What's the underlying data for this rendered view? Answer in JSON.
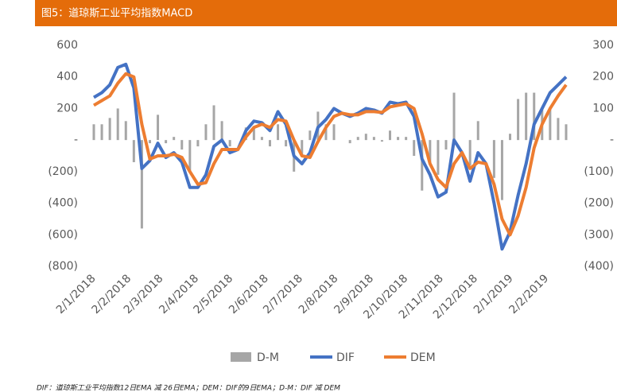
{
  "chart_data": {
    "type": "line",
    "title": "图5：道琼斯工业平均指数MACD",
    "note": "DIF：道琼斯工业平均指数12日EMA 减 26日EMA；DEM：DIF的9日EMA；D-M：DIF 减 DEM",
    "x": [
      "2/1/2018",
      "9/1/2018",
      "16/1/2018",
      "23/1/2018",
      "30/1/2018",
      "6/2/2018",
      "13/2/2018",
      "20/2/2018",
      "27/2/2018",
      "6/3/2018",
      "13/3/2018",
      "20/3/2018",
      "27/3/2018",
      "3/4/2018",
      "10/4/2018",
      "17/4/2018",
      "24/4/2018",
      "1/5/2018",
      "8/5/2018",
      "15/5/2018",
      "22/5/2018",
      "29/5/2018",
      "5/6/2018",
      "12/6/2018",
      "19/6/2018",
      "26/6/2018",
      "3/7/2018",
      "10/7/2018",
      "17/7/2018",
      "24/7/2018",
      "31/7/2018",
      "7/8/2018",
      "14/8/2018",
      "21/8/2018",
      "28/8/2018",
      "4/9/2018",
      "11/9/2018",
      "18/9/2018",
      "25/9/2018",
      "2/10/2018",
      "9/10/2018",
      "16/10/2018",
      "23/10/2018",
      "30/10/2018",
      "6/11/2018",
      "13/11/2018",
      "20/11/2018",
      "27/11/2018",
      "4/12/2018",
      "11/12/2018",
      "18/12/2018",
      "25/12/2018",
      "1/1/2019",
      "8/1/2019",
      "15/1/2019",
      "22/1/2019",
      "29/1/2019",
      "5/2/2019",
      "12/2/2019",
      "19/2/2019"
    ],
    "series": [
      {
        "name": "D-M",
        "kind": "bar",
        "axis": "y2",
        "color": "#a6a6a6",
        "values": [
          50,
          50,
          70,
          100,
          60,
          -70,
          -280,
          -10,
          80,
          -10,
          10,
          -30,
          -100,
          -20,
          50,
          110,
          60,
          -20,
          0,
          40,
          40,
          10,
          -20,
          50,
          -20,
          -100,
          -50,
          30,
          90,
          50,
          50,
          0,
          -10,
          10,
          20,
          10,
          -5,
          30,
          10,
          10,
          -50,
          -160,
          -70,
          -110,
          -30,
          150,
          0,
          -80,
          60,
          0,
          -120,
          -190,
          20,
          130,
          150,
          150,
          100,
          100,
          70,
          50
        ]
      },
      {
        "name": "DIF",
        "kind": "line",
        "color": "#4472c4",
        "values": [
          270,
          300,
          350,
          460,
          480,
          330,
          -180,
          -130,
          -20,
          -110,
          -80,
          -140,
          -300,
          -300,
          -220,
          -40,
          0,
          -80,
          -60,
          60,
          120,
          110,
          60,
          180,
          100,
          -100,
          -150,
          -80,
          80,
          130,
          200,
          170,
          150,
          170,
          200,
          190,
          170,
          240,
          230,
          240,
          150,
          -120,
          -220,
          -360,
          -330,
          0,
          -80,
          -260,
          -80,
          -150,
          -400,
          -690,
          -580,
          -350,
          -150,
          100,
          200,
          300,
          350,
          400
        ]
      },
      {
        "name": "DEM",
        "kind": "line",
        "color": "#ed7d31",
        "values": [
          220,
          250,
          280,
          360,
          420,
          400,
          100,
          -120,
          -100,
          -100,
          -90,
          -110,
          -200,
          -280,
          -270,
          -150,
          -60,
          -60,
          -60,
          20,
          80,
          100,
          80,
          130,
          120,
          0,
          -100,
          -110,
          -10,
          80,
          150,
          170,
          160,
          160,
          180,
          180,
          175,
          210,
          220,
          230,
          200,
          40,
          -150,
          -250,
          -300,
          -150,
          -80,
          -180,
          -140,
          -150,
          -280,
          -500,
          -600,
          -480,
          -300,
          -50,
          100,
          200,
          280,
          350
        ]
      }
    ],
    "xlim": [
      "2/1/2018",
      "19/2/2019"
    ],
    "xticks": [
      "2/1/2018",
      "2/2/2018",
      "2/3/2018",
      "2/4/2018",
      "2/5/2018",
      "2/6/2018",
      "2/7/2018",
      "2/8/2018",
      "2/9/2018",
      "2/10/2018",
      "2/11/2018",
      "2/12/2018",
      "2/1/2019",
      "2/2/2019"
    ],
    "ylim": [
      -800,
      600
    ],
    "yticks": [
      600,
      400,
      200,
      {
        "value": 0,
        "label": "-"
      },
      {
        "value": -200,
        "label": "(200)"
      },
      {
        "value": -400,
        "label": "(400)"
      },
      {
        "value": -600,
        "label": "(600)"
      },
      {
        "value": -800,
        "label": "(800)"
      }
    ],
    "y2lim": [
      -400,
      300
    ],
    "y2ticks": [
      300,
      200,
      100,
      {
        "value": 0,
        "label": "-"
      },
      {
        "value": -100,
        "label": "(100)"
      },
      {
        "value": -200,
        "label": "(200)"
      },
      {
        "value": -300,
        "label": "(300)"
      },
      {
        "value": -400,
        "label": "(400)"
      }
    ],
    "legend": "bottom"
  }
}
